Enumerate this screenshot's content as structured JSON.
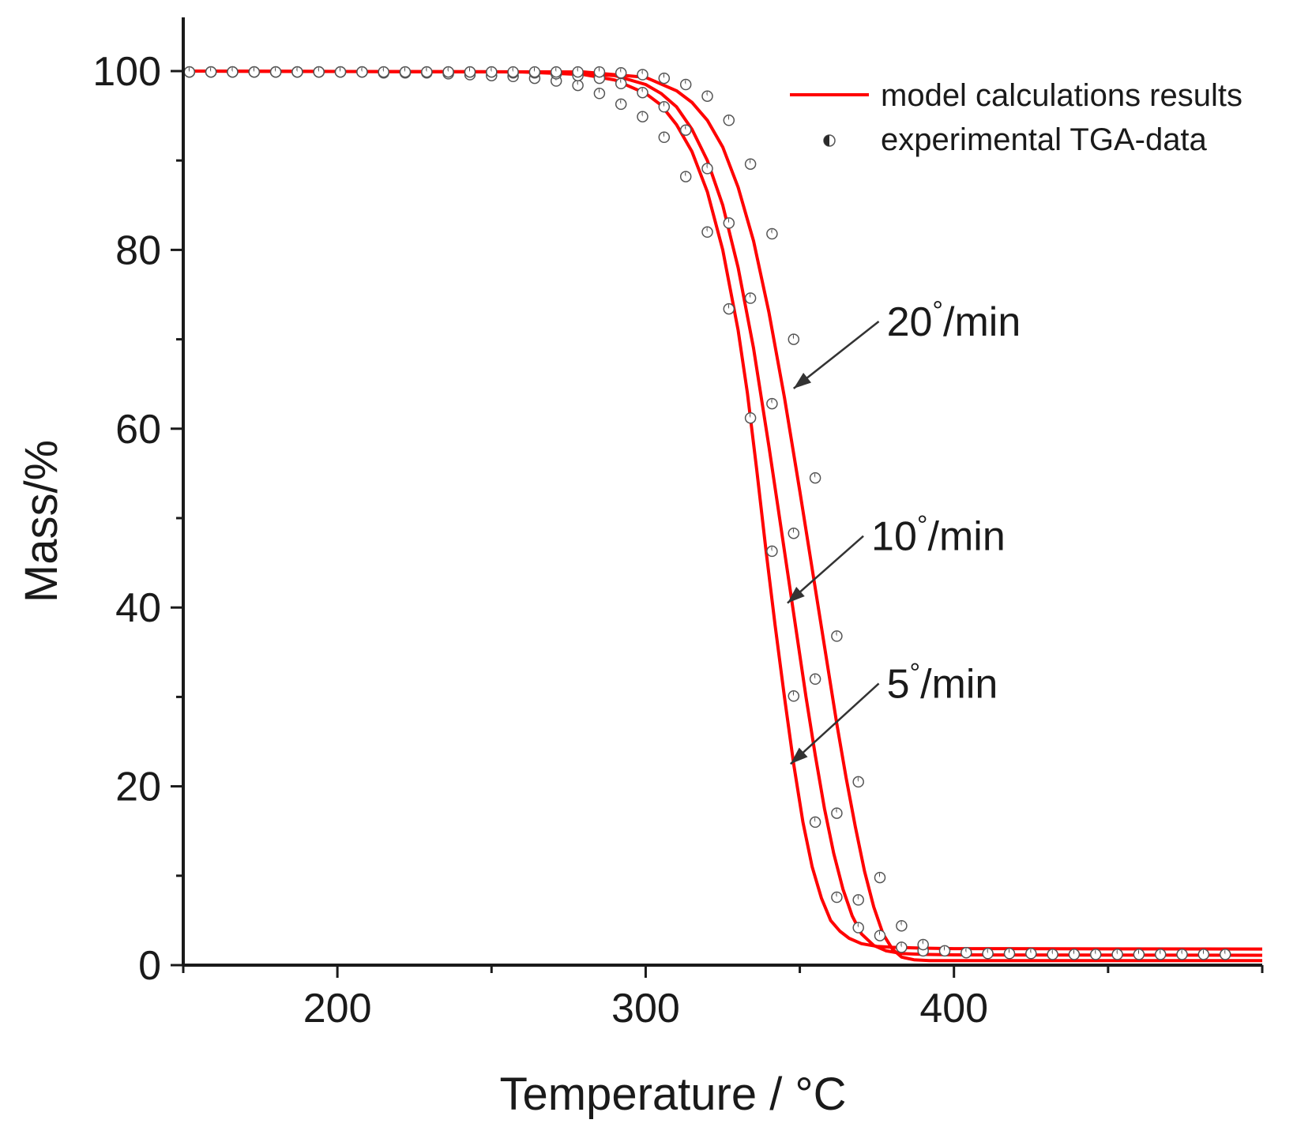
{
  "chart_data": {
    "type": "line",
    "xlabel": "Temperature / °C",
    "ylabel": "Mass/%",
    "xlim": [
      150,
      500
    ],
    "ylim": [
      0,
      100
    ],
    "x_ticks": [
      200,
      300,
      400
    ],
    "y_ticks": [
      0,
      20,
      40,
      60,
      80,
      100
    ],
    "legend": {
      "position": "top-right",
      "entries": [
        "model calculations results",
        "experimental TGA-data"
      ]
    },
    "colors": {
      "model": "#ff0000",
      "experimental": "#2a2a2a",
      "axes": "#1a1a1a"
    },
    "annotations": [
      {
        "num": "20",
        "unit": "/min",
        "text_anchor": [
          350,
          72
        ],
        "arrow_to": [
          348,
          64.5
        ]
      },
      {
        "num": "10",
        "unit": "/min",
        "text_anchor": [
          345,
          48
        ],
        "arrow_to": [
          346,
          40.5
        ]
      },
      {
        "num": "5",
        "unit": "/min",
        "text_anchor": [
          350,
          31.5
        ],
        "arrow_to": [
          347,
          22.5
        ]
      }
    ],
    "series": [
      {
        "kind": "model",
        "rate": "5°/min",
        "x": [
          150,
          260,
          280,
          290,
          300,
          305,
          310,
          315,
          320,
          325,
          330,
          333,
          336,
          339,
          342,
          345,
          348,
          351,
          354,
          357,
          360,
          363,
          366,
          370,
          375,
          380,
          390,
          400,
          500
        ],
        "y": [
          100,
          99.9,
          99.6,
          99.0,
          97.5,
          96.2,
          94.0,
          91.0,
          86.5,
          80.0,
          71.0,
          64.0,
          55.5,
          46.5,
          38.0,
          30.0,
          22.5,
          16.0,
          11.0,
          7.5,
          5.0,
          3.8,
          3.0,
          2.4,
          2.1,
          2.0,
          1.9,
          1.85,
          1.8
        ]
      },
      {
        "kind": "model",
        "rate": "10°/min",
        "x": [
          150,
          270,
          290,
          300,
          305,
          310,
          315,
          320,
          325,
          330,
          335,
          340,
          343,
          346,
          349,
          352,
          355,
          358,
          361,
          364,
          367,
          370,
          374,
          378,
          383,
          390,
          400,
          500
        ],
        "y": [
          100,
          99.9,
          99.5,
          98.5,
          97.5,
          96.0,
          93.5,
          90.0,
          85.0,
          78.0,
          69.0,
          58.0,
          51.0,
          44.0,
          37.0,
          30.0,
          23.5,
          17.5,
          12.5,
          8.5,
          5.5,
          3.5,
          2.2,
          1.6,
          1.3,
          1.2,
          1.15,
          1.1
        ]
      },
      {
        "kind": "model",
        "rate": "20°/min",
        "x": [
          150,
          280,
          300,
          310,
          315,
          320,
          325,
          330,
          335,
          340,
          345,
          350,
          353,
          356,
          359,
          362,
          365,
          368,
          371,
          374,
          377,
          380,
          383,
          387,
          392,
          400,
          500
        ],
        "y": [
          100,
          99.9,
          99.3,
          97.8,
          96.5,
          94.5,
          91.5,
          87.0,
          81.0,
          73.0,
          63.5,
          53.0,
          46.5,
          40.0,
          33.5,
          27.0,
          21.0,
          15.5,
          10.5,
          6.5,
          3.5,
          1.8,
          0.9,
          0.6,
          0.5,
          0.5,
          0.5
        ]
      },
      {
        "kind": "experimental",
        "rate": "5°/min",
        "x": [
          152,
          159,
          166,
          173,
          180,
          187,
          194,
          201,
          208,
          215,
          222,
          229,
          236,
          243,
          250,
          257,
          264,
          271,
          278,
          285,
          292,
          299,
          306,
          313,
          320,
          327,
          334,
          341,
          348,
          355,
          362,
          369
        ],
        "y": [
          99.9,
          99.9,
          99.9,
          99.9,
          99.9,
          99.9,
          99.9,
          99.9,
          99.9,
          99.8,
          99.8,
          99.8,
          99.7,
          99.6,
          99.5,
          99.4,
          99.2,
          98.9,
          98.4,
          97.5,
          96.3,
          94.9,
          92.6,
          88.2,
          82.0,
          73.4,
          61.2,
          46.3,
          30.1,
          16.0,
          7.6,
          4.2
        ]
      },
      {
        "kind": "experimental",
        "rate": "10°/min",
        "x": [
          152,
          159,
          166,
          173,
          180,
          187,
          194,
          201,
          208,
          215,
          222,
          229,
          236,
          243,
          250,
          257,
          264,
          271,
          278,
          285,
          292,
          299,
          306,
          313,
          320,
          327,
          334,
          341,
          348,
          355,
          362,
          369,
          376,
          383,
          390
        ],
        "y": [
          99.9,
          99.9,
          99.9,
          99.9,
          99.9,
          99.9,
          99.9,
          99.9,
          99.9,
          99.9,
          99.9,
          99.9,
          99.9,
          99.9,
          99.9,
          99.8,
          99.8,
          99.7,
          99.5,
          99.2,
          98.6,
          97.6,
          96.0,
          93.4,
          89.1,
          83.0,
          74.6,
          62.8,
          48.3,
          32.0,
          17.0,
          7.3,
          3.3,
          2.0,
          1.6
        ]
      },
      {
        "kind": "experimental",
        "rate": "20°/min",
        "x": [
          152,
          159,
          166,
          173,
          180,
          187,
          194,
          201,
          208,
          215,
          222,
          229,
          236,
          243,
          250,
          257,
          264,
          271,
          278,
          285,
          292,
          299,
          306,
          313,
          320,
          327,
          334,
          341,
          348,
          355,
          362,
          369,
          376,
          383,
          390,
          397,
          404,
          411,
          418,
          425,
          432,
          439,
          446,
          453,
          460,
          467,
          474,
          481,
          488
        ],
        "y": [
          99.9,
          99.9,
          99.9,
          99.9,
          99.9,
          99.9,
          99.9,
          99.9,
          99.9,
          99.9,
          99.9,
          99.9,
          99.9,
          99.9,
          99.9,
          99.9,
          99.9,
          99.9,
          99.9,
          99.9,
          99.8,
          99.6,
          99.2,
          98.5,
          97.2,
          94.5,
          89.6,
          81.8,
          70.0,
          54.5,
          36.8,
          20.5,
          9.8,
          4.4,
          2.3,
          1.6,
          1.4,
          1.3,
          1.3,
          1.3,
          1.2,
          1.2,
          1.2,
          1.2,
          1.2,
          1.2,
          1.2,
          1.2,
          1.2
        ]
      }
    ]
  }
}
